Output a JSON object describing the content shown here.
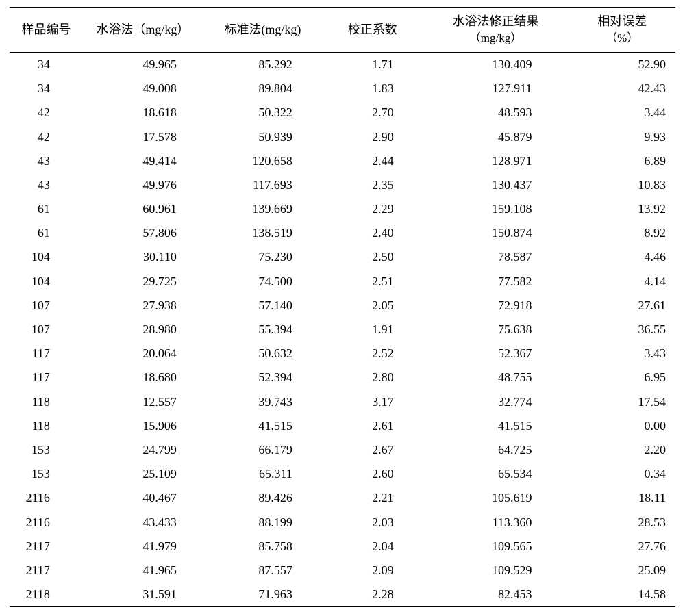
{
  "table": {
    "columns": [
      {
        "label": "样品编号",
        "sublabel": ""
      },
      {
        "label": "水浴法（mg/kg）",
        "sublabel": ""
      },
      {
        "label": "标准法(mg/kg)",
        "sublabel": ""
      },
      {
        "label": "校正系数",
        "sublabel": ""
      },
      {
        "label": "水浴法修正结果",
        "sublabel": "（mg/kg）"
      },
      {
        "label": "相对误差",
        "sublabel": "（%）"
      }
    ],
    "rows": [
      [
        "34",
        "49.965",
        "85.292",
        "1.71",
        "130.409",
        "52.90"
      ],
      [
        "34",
        "49.008",
        "89.804",
        "1.83",
        "127.911",
        "42.43"
      ],
      [
        "42",
        "18.618",
        "50.322",
        "2.70",
        "48.593",
        "3.44"
      ],
      [
        "42",
        "17.578",
        "50.939",
        "2.90",
        "45.879",
        "9.93"
      ],
      [
        "43",
        "49.414",
        "120.658",
        "2.44",
        "128.971",
        "6.89"
      ],
      [
        "43",
        "49.976",
        "117.693",
        "2.35",
        "130.437",
        "10.83"
      ],
      [
        "61",
        "60.961",
        "139.669",
        "2.29",
        "159.108",
        "13.92"
      ],
      [
        "61",
        "57.806",
        "138.519",
        "2.40",
        "150.874",
        "8.92"
      ],
      [
        "104",
        "30.110",
        "75.230",
        "2.50",
        "78.587",
        "4.46"
      ],
      [
        "104",
        "29.725",
        "74.500",
        "2.51",
        "77.582",
        "4.14"
      ],
      [
        "107",
        "27.938",
        "57.140",
        "2.05",
        "72.918",
        "27.61"
      ],
      [
        "107",
        "28.980",
        "55.394",
        "1.91",
        "75.638",
        "36.55"
      ],
      [
        "117",
        "20.064",
        "50.632",
        "2.52",
        "52.367",
        "3.43"
      ],
      [
        "117",
        "18.680",
        "52.394",
        "2.80",
        "48.755",
        "6.95"
      ],
      [
        "118",
        "12.557",
        "39.743",
        "3.17",
        "32.774",
        "17.54"
      ],
      [
        "118",
        "15.906",
        "41.515",
        "2.61",
        "41.515",
        "0.00"
      ],
      [
        "153",
        "24.799",
        "66.179",
        "2.67",
        "64.725",
        "2.20"
      ],
      [
        "153",
        "25.109",
        "65.311",
        "2.60",
        "65.534",
        "0.34"
      ],
      [
        "2116",
        "40.467",
        "89.426",
        "2.21",
        "105.619",
        "18.11"
      ],
      [
        "2116",
        "43.433",
        "88.199",
        "2.03",
        "113.360",
        "28.53"
      ],
      [
        "2117",
        "41.979",
        "85.758",
        "2.04",
        "109.565",
        "27.76"
      ],
      [
        "2117",
        "41.965",
        "87.557",
        "2.09",
        "109.529",
        "25.09"
      ],
      [
        "2118",
        "31.591",
        "71.963",
        "2.28",
        "82.453",
        "14.58"
      ]
    ],
    "style": {
      "background_color": "#ffffff",
      "text_color": "#000000",
      "rule_color": "#000000",
      "header_fontsize": 18,
      "body_fontsize": 18,
      "font_family": "SimSun / Times"
    }
  }
}
